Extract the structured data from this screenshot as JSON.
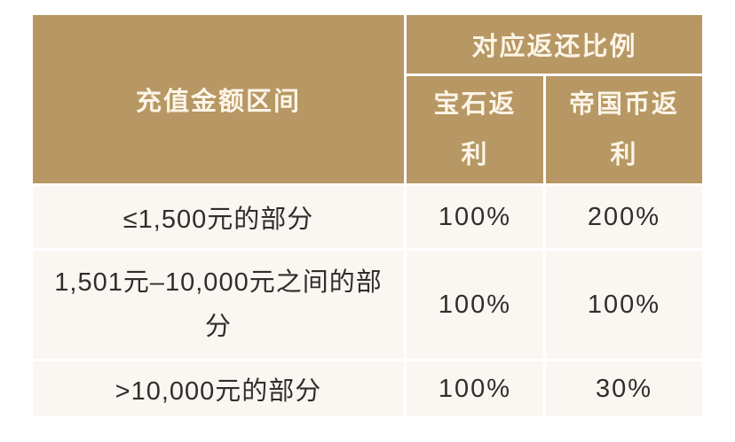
{
  "chart_data": {
    "type": "table",
    "header": {
      "col1": "充值金额区间",
      "group": "对应返还比例",
      "sub1": "宝石返利",
      "sub2": "帝国币返利"
    },
    "rows": [
      [
        "≤1,500元的部分",
        "100%",
        "200%"
      ],
      [
        "1,501元–10,000元之间的部分",
        "100%",
        "100%"
      ],
      [
        ">10,000元的部分",
        "100%",
        "30%"
      ]
    ]
  },
  "display": {
    "sub1_lines": [
      "宝石返",
      "利"
    ],
    "sub2_lines": [
      "帝国币返",
      "利"
    ],
    "row2_lines": [
      "1,501元–10,000元之间的部",
      "分"
    ]
  },
  "colors": {
    "header_bg": "#b79763",
    "header_text": "#fbf4e7",
    "body_bg": "#faf7f2",
    "body_text": "#302e2b",
    "page_bg": "#ffffff",
    "grid_gap": "#ffffff"
  }
}
